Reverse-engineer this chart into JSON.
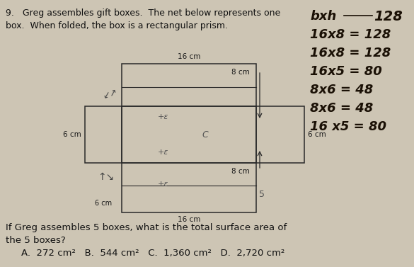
{
  "bg_color": "#cdc5b4",
  "title_line1": "9.   Greg assembles gift boxes.  The net below represents one",
  "title_line2": "box.  When folded, the box is a rectangular prism.",
  "question_line1": "If Greg assembles 5 boxes, what is the total surface area of",
  "question_line2": "the 5 boxes?",
  "answer_line": "A.  272 cm²   B.  544 cm²   C.  1,360 cm²   D.  2,720 cm²",
  "font_size_main": 9.0,
  "font_size_label": 7.5,
  "font_size_answer": 9.5,
  "hw_color": "#1a1005",
  "net_color": "#2a2a2a",
  "label_color": "#1a1a1a"
}
